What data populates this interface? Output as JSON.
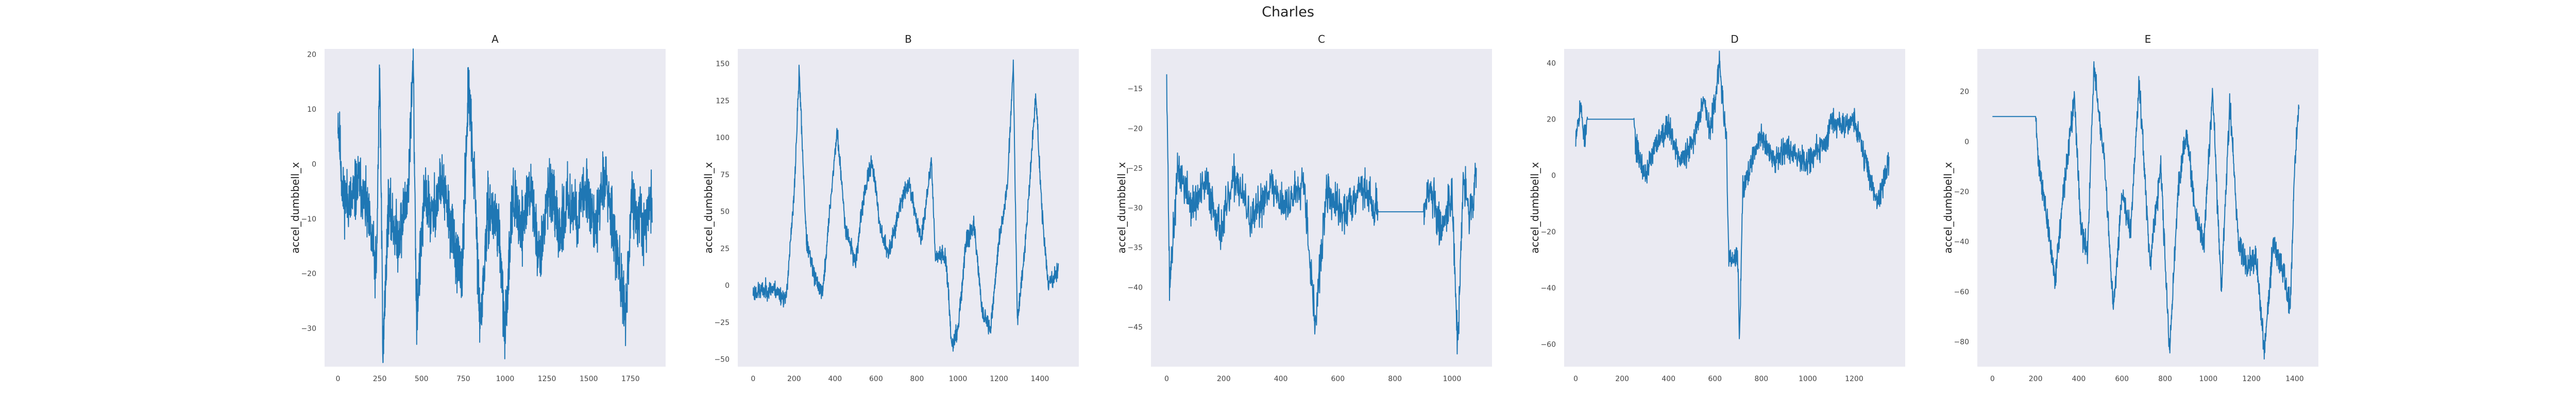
{
  "figure": {
    "suptitle": "Charles"
  },
  "chart_data": [
    {
      "type": "line",
      "title": "A",
      "xlabel": "",
      "ylabel": "accel_dumbbell_x",
      "xlim": [
        -80,
        1960
      ],
      "ylim": [
        -37,
        21
      ],
      "grid": false,
      "xticks": [
        0,
        250,
        500,
        750,
        1000,
        1250,
        1500,
        1750
      ],
      "yticks": [
        -30,
        -20,
        -10,
        0,
        10,
        20
      ],
      "series": [
        {
          "x_start": 0,
          "x_end": 1880,
          "anchors": [
            [
              0,
              9
            ],
            [
              30,
              -6
            ],
            [
              80,
              -7
            ],
            [
              130,
              -3
            ],
            [
              180,
              -10
            ],
            [
              230,
              -20
            ],
            [
              250,
              18
            ],
            [
              270,
              -35
            ],
            [
              300,
              -8
            ],
            [
              360,
              -14
            ],
            [
              420,
              -5
            ],
            [
              450,
              19
            ],
            [
              470,
              -28
            ],
            [
              520,
              -5
            ],
            [
              560,
              -10
            ],
            [
              620,
              -3
            ],
            [
              680,
              -12
            ],
            [
              740,
              -22
            ],
            [
              780,
              14
            ],
            [
              820,
              -5
            ],
            [
              850,
              -30
            ],
            [
              900,
              -8
            ],
            [
              960,
              -11
            ],
            [
              1000,
              -32
            ],
            [
              1040,
              -6
            ],
            [
              1100,
              -12
            ],
            [
              1150,
              -4
            ],
            [
              1210,
              -18
            ],
            [
              1260,
              -3
            ],
            [
              1320,
              -13
            ],
            [
              1380,
              -6
            ],
            [
              1430,
              -10
            ],
            [
              1490,
              -4
            ],
            [
              1540,
              -12
            ],
            [
              1600,
              -2
            ],
            [
              1660,
              -14
            ],
            [
              1720,
              -27
            ],
            [
              1760,
              -7
            ],
            [
              1820,
              -12
            ],
            [
              1880,
              -7
            ]
          ],
          "noise": 5.5,
          "seed": 11
        }
      ]
    },
    {
      "type": "line",
      "title": "B",
      "xlabel": "",
      "ylabel": "accel_dumbbell_x",
      "xlim": [
        -75,
        1590
      ],
      "ylim": [
        -55,
        160
      ],
      "grid": false,
      "xticks": [
        0,
        200,
        400,
        600,
        800,
        1000,
        1200,
        1400
      ],
      "yticks": [
        -50,
        -25,
        0,
        25,
        50,
        75,
        100,
        125,
        150
      ],
      "series": [
        {
          "x_start": 0,
          "x_end": 1490,
          "anchors": [
            [
              0,
              -5
            ],
            [
              100,
              -2
            ],
            [
              160,
              -10
            ],
            [
              200,
              60
            ],
            [
              225,
              145
            ],
            [
              260,
              30
            ],
            [
              300,
              5
            ],
            [
              340,
              -5
            ],
            [
              380,
              60
            ],
            [
              410,
              105
            ],
            [
              450,
              40
            ],
            [
              500,
              15
            ],
            [
              540,
              60
            ],
            [
              580,
              85
            ],
            [
              620,
              40
            ],
            [
              660,
              20
            ],
            [
              720,
              55
            ],
            [
              760,
              70
            ],
            [
              820,
              30
            ],
            [
              870,
              85
            ],
            [
              890,
              20
            ],
            [
              940,
              20
            ],
            [
              970,
              -40
            ],
            [
              1000,
              -30
            ],
            [
              1040,
              30
            ],
            [
              1080,
              40
            ],
            [
              1120,
              -20
            ],
            [
              1160,
              -30
            ],
            [
              1200,
              30
            ],
            [
              1240,
              65
            ],
            [
              1270,
              150
            ],
            [
              1290,
              -25
            ],
            [
              1330,
              30
            ],
            [
              1380,
              130
            ],
            [
              1410,
              50
            ],
            [
              1440,
              0
            ],
            [
              1490,
              10
            ]
          ],
          "noise": 6,
          "seed": 23
        }
      ]
    },
    {
      "type": "line",
      "title": "C",
      "xlabel": "",
      "ylabel": "accel_dumbbell_x",
      "xlim": [
        -55,
        1140
      ],
      "ylim": [
        -50,
        -10
      ],
      "grid": false,
      "xticks": [
        0,
        200,
        400,
        600,
        800,
        1000
      ],
      "yticks": [
        -45,
        -40,
        -35,
        -30,
        -25,
        -20,
        -15
      ],
      "series": [
        {
          "x_start": 0,
          "x_end": 1085,
          "anchors": [
            [
              0,
              -12
            ],
            [
              10,
              -40
            ],
            [
              40,
              -25
            ],
            [
              90,
              -30
            ],
            [
              140,
              -27
            ],
            [
              190,
              -33
            ],
            [
              240,
              -26
            ],
            [
              300,
              -32
            ],
            [
              360,
              -27
            ],
            [
              420,
              -30
            ],
            [
              480,
              -26
            ],
            [
              520,
              -45
            ],
            [
              560,
              -28
            ],
            [
              620,
              -31
            ],
            [
              680,
              -27
            ],
            [
              730,
              -30
            ],
            [
              740,
              -30.5
            ],
            [
              900,
              -30.5
            ],
            [
              920,
              -27
            ],
            [
              960,
              -33
            ],
            [
              1000,
              -28
            ],
            [
              1020,
              -48
            ],
            [
              1040,
              -26
            ],
            [
              1060,
              -31
            ],
            [
              1085,
              -26
            ]
          ],
          "noise": 2.6,
          "seed": 37
        }
      ]
    },
    {
      "type": "line",
      "title": "D",
      "xlabel": "",
      "ylabel": "accel_dumbbell_x",
      "xlim": [
        -50,
        1420
      ],
      "ylim": [
        -68,
        45
      ],
      "grid": false,
      "xticks": [
        0,
        200,
        400,
        600,
        800,
        1000,
        1200
      ],
      "yticks": [
        -60,
        -40,
        -20,
        0,
        20,
        40
      ],
      "series": [
        {
          "x_start": 0,
          "x_end": 1350,
          "anchors": [
            [
              0,
              15
            ],
            [
              20,
              25
            ],
            [
              40,
              12
            ],
            [
              50,
              20
            ],
            [
              250,
              20
            ],
            [
              260,
              10
            ],
            [
              300,
              0
            ],
            [
              350,
              12
            ],
            [
              400,
              18
            ],
            [
              450,
              5
            ],
            [
              500,
              10
            ],
            [
              550,
              28
            ],
            [
              580,
              15
            ],
            [
              620,
              40
            ],
            [
              650,
              10
            ],
            [
              660,
              -30
            ],
            [
              700,
              -30
            ],
            [
              705,
              -62
            ],
            [
              720,
              -5
            ],
            [
              760,
              5
            ],
            [
              800,
              15
            ],
            [
              850,
              5
            ],
            [
              900,
              10
            ],
            [
              1000,
              5
            ],
            [
              1080,
              12
            ],
            [
              1100,
              20
            ],
            [
              1150,
              18
            ],
            [
              1200,
              20
            ],
            [
              1250,
              5
            ],
            [
              1300,
              -10
            ],
            [
              1350,
              5
            ]
          ],
          "noise": 4.5,
          "seed": 53
        }
      ]
    },
    {
      "type": "line",
      "title": "E",
      "xlabel": "",
      "ylabel": "accel_dumbbell_x",
      "xlim": [
        -70,
        1510
      ],
      "ylim": [
        -90,
        37
      ],
      "grid": false,
      "xticks": [
        0,
        200,
        400,
        600,
        800,
        1000,
        1200,
        1400
      ],
      "yticks": [
        -80,
        -60,
        -40,
        -20,
        0,
        20
      ],
      "series": [
        {
          "x_start": 0,
          "x_end": 1420,
          "anchors": [
            [
              0,
              10
            ],
            [
              200,
              10
            ],
            [
              210,
              -5
            ],
            [
              250,
              -30
            ],
            [
              290,
              -55
            ],
            [
              330,
              -20
            ],
            [
              380,
              18
            ],
            [
              410,
              -35
            ],
            [
              440,
              -45
            ],
            [
              470,
              30
            ],
            [
              520,
              -10
            ],
            [
              560,
              -68
            ],
            [
              600,
              -20
            ],
            [
              640,
              -35
            ],
            [
              680,
              25
            ],
            [
              730,
              -50
            ],
            [
              780,
              -10
            ],
            [
              820,
              -85
            ],
            [
              860,
              -20
            ],
            [
              900,
              5
            ],
            [
              940,
              -30
            ],
            [
              980,
              -40
            ],
            [
              1020,
              20
            ],
            [
              1060,
              -60
            ],
            [
              1100,
              15
            ],
            [
              1140,
              -40
            ],
            [
              1180,
              -50
            ],
            [
              1220,
              -45
            ],
            [
              1260,
              -85
            ],
            [
              1300,
              -40
            ],
            [
              1340,
              -50
            ],
            [
              1380,
              -65
            ],
            [
              1400,
              -10
            ],
            [
              1420,
              15
            ]
          ],
          "noise": 5,
          "seed": 71
        }
      ]
    }
  ]
}
